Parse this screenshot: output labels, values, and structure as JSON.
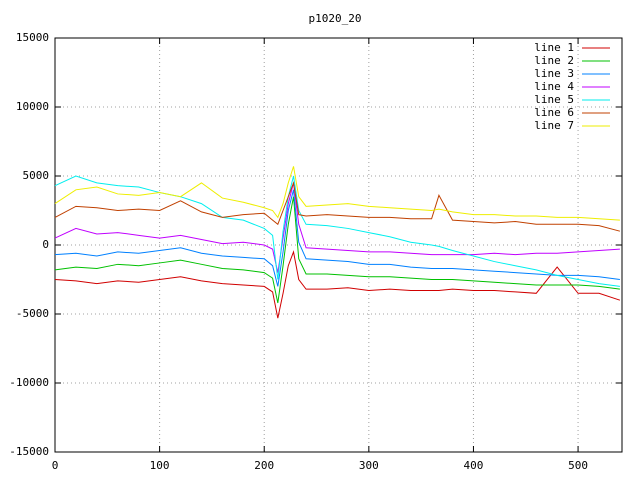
{
  "chart_data": {
    "type": "line",
    "title": "p1020_20",
    "x": [
      0,
      20,
      40,
      60,
      80,
      100,
      120,
      140,
      160,
      180,
      200,
      208,
      213,
      218,
      223,
      228,
      233,
      240,
      260,
      280,
      300,
      320,
      340,
      360,
      367,
      380,
      400,
      420,
      440,
      460,
      480,
      500,
      520,
      540
    ],
    "xlim": [
      0,
      542
    ],
    "xticks": [
      0,
      100,
      200,
      300,
      400,
      500
    ],
    "ylim": [
      -15000,
      15000
    ],
    "yticks": [
      -15000,
      -10000,
      -5000,
      0,
      5000,
      10000,
      15000
    ],
    "grid": true,
    "legend": "top-right",
    "series": [
      {
        "name": "line 1",
        "color": "#d00000",
        "values": [
          -2500,
          -2600,
          -2800,
          -2600,
          -2700,
          -2500,
          -2300,
          -2600,
          -2800,
          -2900,
          -3000,
          -3400,
          -5300,
          -3500,
          -1500,
          -500,
          -2500,
          -3200,
          -3200,
          -3100,
          -3300,
          -3200,
          -3300,
          -3300,
          -3300,
          -3200,
          -3300,
          -3300,
          -3400,
          -3500,
          -1600,
          -3500,
          -3500,
          -4000
        ]
      },
      {
        "name": "line 2",
        "color": "#00c000",
        "values": [
          -1800,
          -1600,
          -1700,
          -1400,
          -1500,
          -1300,
          -1100,
          -1400,
          -1700,
          -1800,
          -2000,
          -2400,
          -4200,
          -1500,
          1500,
          3500,
          -1000,
          -2100,
          -2100,
          -2200,
          -2300,
          -2300,
          -2400,
          -2500,
          -2500,
          -2500,
          -2600,
          -2700,
          -2800,
          -2900,
          -2900,
          -2900,
          -3000,
          -3200
        ]
      },
      {
        "name": "line 3",
        "color": "#0080ff",
        "values": [
          -700,
          -600,
          -800,
          -500,
          -600,
          -400,
          -200,
          -600,
          -800,
          -900,
          -1000,
          -1500,
          -3000,
          -500,
          2500,
          4000,
          200,
          -1000,
          -1100,
          -1200,
          -1400,
          -1400,
          -1600,
          -1700,
          -1700,
          -1700,
          -1800,
          -1900,
          -2000,
          -2100,
          -2200,
          -2200,
          -2300,
          -2500
        ]
      },
      {
        "name": "line 4",
        "color": "#c000ff",
        "values": [
          500,
          1200,
          800,
          900,
          700,
          500,
          700,
          400,
          100,
          200,
          0,
          -300,
          -2000,
          500,
          3000,
          4500,
          1500,
          -200,
          -300,
          -400,
          -500,
          -500,
          -600,
          -700,
          -700,
          -700,
          -700,
          -600,
          -700,
          -600,
          -600,
          -500,
          -400,
          -300
        ]
      },
      {
        "name": "line 5",
        "color": "#00eeee",
        "values": [
          4300,
          5000,
          4500,
          4300,
          4200,
          3800,
          3500,
          3000,
          2000,
          1800,
          1200,
          700,
          -2500,
          1000,
          3500,
          5000,
          2500,
          1500,
          1400,
          1200,
          900,
          600,
          200,
          0,
          -100,
          -400,
          -800,
          -1200,
          -1500,
          -1800,
          -2200,
          -2500,
          -2800,
          -3000
        ]
      },
      {
        "name": "line 6",
        "color": "#c04000",
        "values": [
          2000,
          2800,
          2700,
          2500,
          2600,
          2500,
          3200,
          2400,
          2000,
          2200,
          2300,
          1800,
          1500,
          2500,
          3500,
          4500,
          2200,
          2100,
          2200,
          2100,
          2000,
          2000,
          1900,
          1900,
          3600,
          1800,
          1700,
          1600,
          1700,
          1500,
          1500,
          1500,
          1400,
          1000
        ]
      },
      {
        "name": "line 7",
        "color": "#eeee00",
        "values": [
          3000,
          4000,
          4200,
          3700,
          3600,
          3800,
          3500,
          4500,
          3400,
          3100,
          2700,
          2500,
          2000,
          3000,
          4500,
          5700,
          3500,
          2800,
          2900,
          3000,
          2800,
          2700,
          2600,
          2500,
          2600,
          2400,
          2200,
          2200,
          2100,
          2100,
          2000,
          2000,
          1900,
          1800
        ]
      }
    ]
  }
}
